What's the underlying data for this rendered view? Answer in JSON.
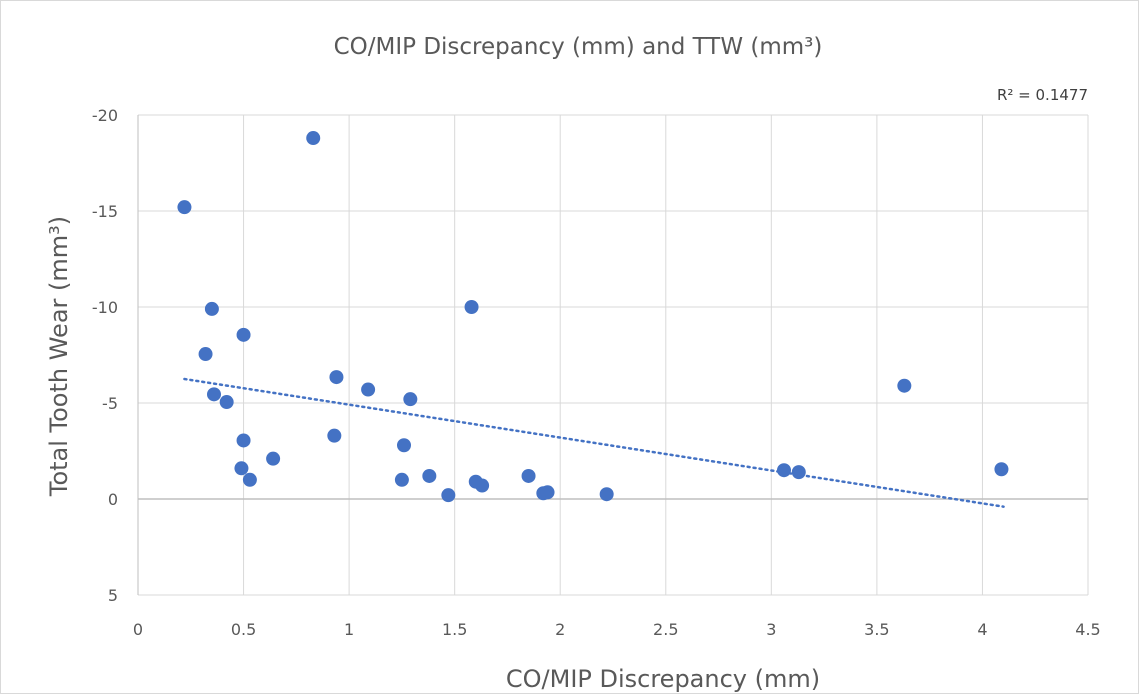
{
  "chart_data": {
    "type": "scatter",
    "title": "CO/MIP Discrepancy (mm) and TTW (mm³)",
    "xlabel": "CO/MIP Discrepancy (mm)",
    "ylabel": "Total Tooth Wear (mm³)",
    "xlim": [
      0,
      4.5
    ],
    "ylim": [
      -20,
      5
    ],
    "y_axis_reversed": true,
    "x_ticks": [
      "0",
      "0.5",
      "1",
      "1.5",
      "2",
      "2.5",
      "3",
      "3.5",
      "4",
      "4.5"
    ],
    "y_ticks": [
      "-20",
      "-15",
      "-10",
      "-5",
      "0",
      "5"
    ],
    "grid": true,
    "point_color": "#4472c4",
    "trendline": {
      "type": "linear",
      "x_range": [
        0.22,
        4.1
      ],
      "y_start": -6.25,
      "y_end": 0.4,
      "color": "#4472c4",
      "style": "dotted",
      "r_squared_label": "R² = 0.1477"
    },
    "points": [
      {
        "x": 0.22,
        "y": -15.2
      },
      {
        "x": 0.32,
        "y": -7.55
      },
      {
        "x": 0.35,
        "y": -9.9
      },
      {
        "x": 0.36,
        "y": -5.45
      },
      {
        "x": 0.42,
        "y": -5.05
      },
      {
        "x": 0.49,
        "y": -1.6
      },
      {
        "x": 0.5,
        "y": -8.55
      },
      {
        "x": 0.5,
        "y": -3.05
      },
      {
        "x": 0.53,
        "y": -1.0
      },
      {
        "x": 0.64,
        "y": -2.1
      },
      {
        "x": 0.83,
        "y": -18.8
      },
      {
        "x": 0.93,
        "y": -3.3
      },
      {
        "x": 0.94,
        "y": -6.35
      },
      {
        "x": 1.09,
        "y": -5.7
      },
      {
        "x": 1.25,
        "y": -1.0
      },
      {
        "x": 1.26,
        "y": -2.8
      },
      {
        "x": 1.29,
        "y": -5.2
      },
      {
        "x": 1.38,
        "y": -1.2
      },
      {
        "x": 1.47,
        "y": -0.2
      },
      {
        "x": 1.58,
        "y": -10.0
      },
      {
        "x": 1.6,
        "y": -0.9
      },
      {
        "x": 1.63,
        "y": -0.7
      },
      {
        "x": 1.85,
        "y": -1.2
      },
      {
        "x": 1.92,
        "y": -0.3
      },
      {
        "x": 1.94,
        "y": -0.35
      },
      {
        "x": 2.22,
        "y": -0.25
      },
      {
        "x": 3.06,
        "y": -1.5
      },
      {
        "x": 3.13,
        "y": -1.4
      },
      {
        "x": 3.63,
        "y": -5.9
      },
      {
        "x": 4.09,
        "y": -1.55
      }
    ]
  }
}
